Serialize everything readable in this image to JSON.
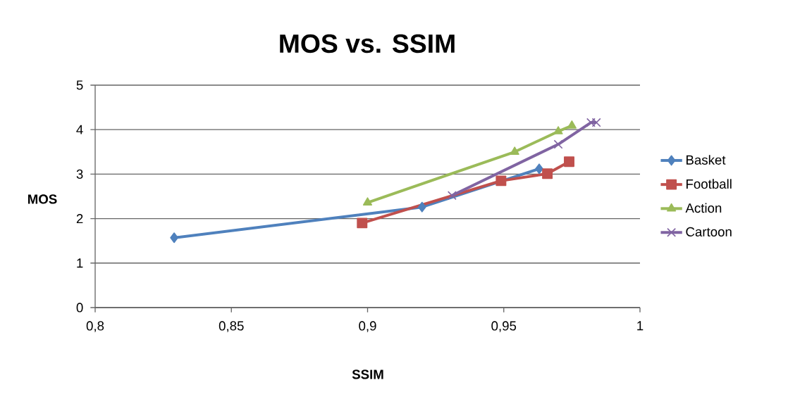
{
  "chart_data": {
    "type": "line",
    "title": "MOS vs. SSIM",
    "xlabel": "SSIM",
    "ylabel": "MOS",
    "series": [
      {
        "name": "Basket",
        "color": "#4f81bd",
        "marker": "diamond",
        "x": [
          0.829,
          0.92,
          0.963
        ],
        "values": [
          1.57,
          2.26,
          3.12
        ]
      },
      {
        "name": "Football",
        "color": "#c0504d",
        "marker": "square",
        "x": [
          0.898,
          0.949,
          0.966,
          0.974
        ],
        "values": [
          1.9,
          2.85,
          3.01,
          3.28
        ]
      },
      {
        "name": "Action",
        "color": "#9bbb59",
        "marker": "triangle",
        "x": [
          0.9,
          0.954,
          0.97,
          0.975
        ],
        "values": [
          2.36,
          3.5,
          3.96,
          4.09
        ]
      },
      {
        "name": "Cartoon",
        "color": "#8064a2",
        "marker": "cross",
        "x": [
          0.931,
          0.97,
          0.982,
          0.984
        ],
        "values": [
          2.52,
          3.67,
          4.16,
          4.16
        ]
      }
    ],
    "xlim": [
      0.8,
      1
    ],
    "xticks": [
      {
        "value": 0.8,
        "label": "0,8"
      },
      {
        "value": 0.85,
        "label": "0,85"
      },
      {
        "value": 0.9,
        "label": "0,9"
      },
      {
        "value": 0.95,
        "label": "0,95"
      },
      {
        "value": 1,
        "label": "1"
      }
    ],
    "ylim": [
      0,
      5
    ],
    "yticks": [
      0,
      1,
      2,
      3,
      4,
      5
    ],
    "grid": "y",
    "legend": "right",
    "line_style": "solid"
  }
}
